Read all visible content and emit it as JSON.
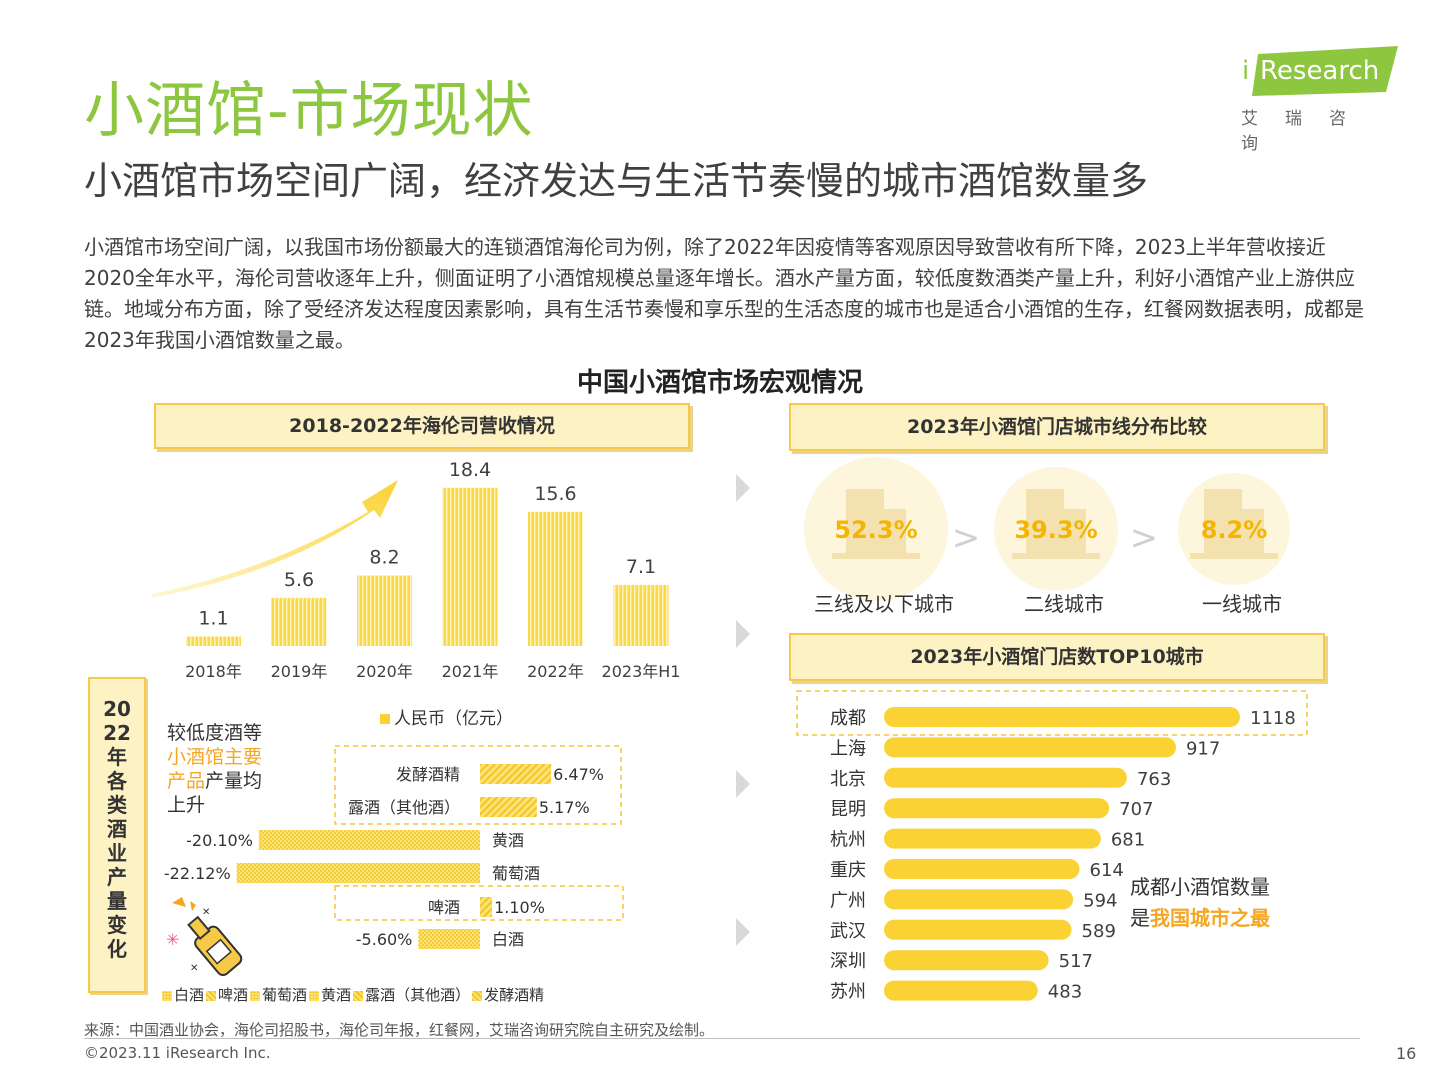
{
  "header": {
    "title": "小酒馆-市场现状",
    "subtitle": "小酒馆市场空间广阔，经济发达与生活节奏慢的城市酒馆数量多",
    "intro": "小酒馆市场空间广阔，以我国市场份额最大的连锁酒馆海伦司为例，除了2022年因疫情等客观原因导致营收有所下降，2023上半年营收接近2020全年水平，海伦司营收逐年上升，侧面证明了小酒馆规模总量逐年增长。酒水产量方面，较低度数酒类产量上升，利好小酒馆产业上游供应链。地域分布方面，除了受经济发达程度因素影响，具有生活节奏慢和享乐型的生活态度的城市也是适合小酒馆的生存，红餐网数据表明，成都是2023年我国小酒馆数量之最。"
  },
  "logo": {
    "brand": "Research",
    "brand_i": "i",
    "cn": "艾瑞咨询"
  },
  "figure_title": "中国小酒馆市场宏观情况",
  "colors": {
    "accent_green": "#8dc63f",
    "bar_yellow": "#fbd233",
    "bar_light": "#fbe07a",
    "box_bg": "#fdf2c4",
    "box_border": "#f7c948",
    "highlight_orange": "#f5a623"
  },
  "chart_data": [
    {
      "type": "bar",
      "title": "2018-2022年海伦司营收情况",
      "categories": [
        "2018年",
        "2019年",
        "2020年",
        "2021年",
        "2022年",
        "2023年H1"
      ],
      "series": [
        {
          "name": "人民币（亿元）",
          "values": [
            1.1,
            5.6,
            8.2,
            18.4,
            15.6,
            7.1
          ]
        }
      ],
      "value_labels": [
        "1.1",
        "5.6",
        "8.2",
        "18.4",
        "15.6",
        "7.1"
      ],
      "ylim": [
        0,
        20
      ],
      "legend": "bottom"
    },
    {
      "type": "bar",
      "title": "2023年小酒馆门店城市线分布比较",
      "categories": [
        "三线及以下城市",
        "二线城市",
        "一线城市"
      ],
      "values": [
        52.3,
        39.3,
        8.2
      ],
      "value_labels": [
        "52.3%",
        "39.3%",
        "8.2%"
      ],
      "separators": [
        ">",
        ">"
      ]
    },
    {
      "type": "bar",
      "orientation": "horizontal",
      "title": "2023年小酒馆门店数TOP10城市",
      "categories": [
        "成都",
        "上海",
        "北京",
        "昆明",
        "杭州",
        "重庆",
        "广州",
        "武汉",
        "深圳",
        "苏州"
      ],
      "values": [
        1118,
        917,
        763,
        707,
        681,
        614,
        594,
        589,
        517,
        483
      ],
      "value_labels": [
        "1118",
        "917",
        "763",
        "707",
        "681",
        "614",
        "594",
        "589",
        "517",
        "483"
      ],
      "highlighted": "成都",
      "annotation": {
        "line1": "成都小酒馆数量",
        "line2_prefix": "是",
        "line2_highlight": "我国城市之最"
      }
    },
    {
      "type": "bar",
      "orientation": "horizontal",
      "title": "2022年各类酒业产量变化",
      "categories": [
        "发酵酒精",
        "露酒（其他酒）",
        "黄酒",
        "葡萄酒",
        "啤酒",
        "白酒"
      ],
      "values": [
        6.47,
        5.17,
        -20.1,
        -22.12,
        1.1,
        -5.6
      ],
      "value_labels": [
        "6.47%",
        "5.17%",
        "-20.10%",
        "-22.12%",
        "1.10%",
        "-5.60%"
      ],
      "legend": [
        "白酒",
        "啤酒",
        "葡萄酒",
        "黄酒",
        "露酒（其他酒）",
        "发酵酒精"
      ],
      "annotation": {
        "part1": "较低度酒等",
        "part2": "小酒馆主要",
        "part3": "产品",
        "part4": "产量均",
        "part5": "上升"
      }
    }
  ],
  "footer": {
    "source": "来源：中国酒业协会，海伦司招股书，海伦司年报，红餐网，艾瑞咨询研究院自主研究及绘制。",
    "copyright": "©2023.11 iResearch Inc.",
    "page": "16"
  }
}
